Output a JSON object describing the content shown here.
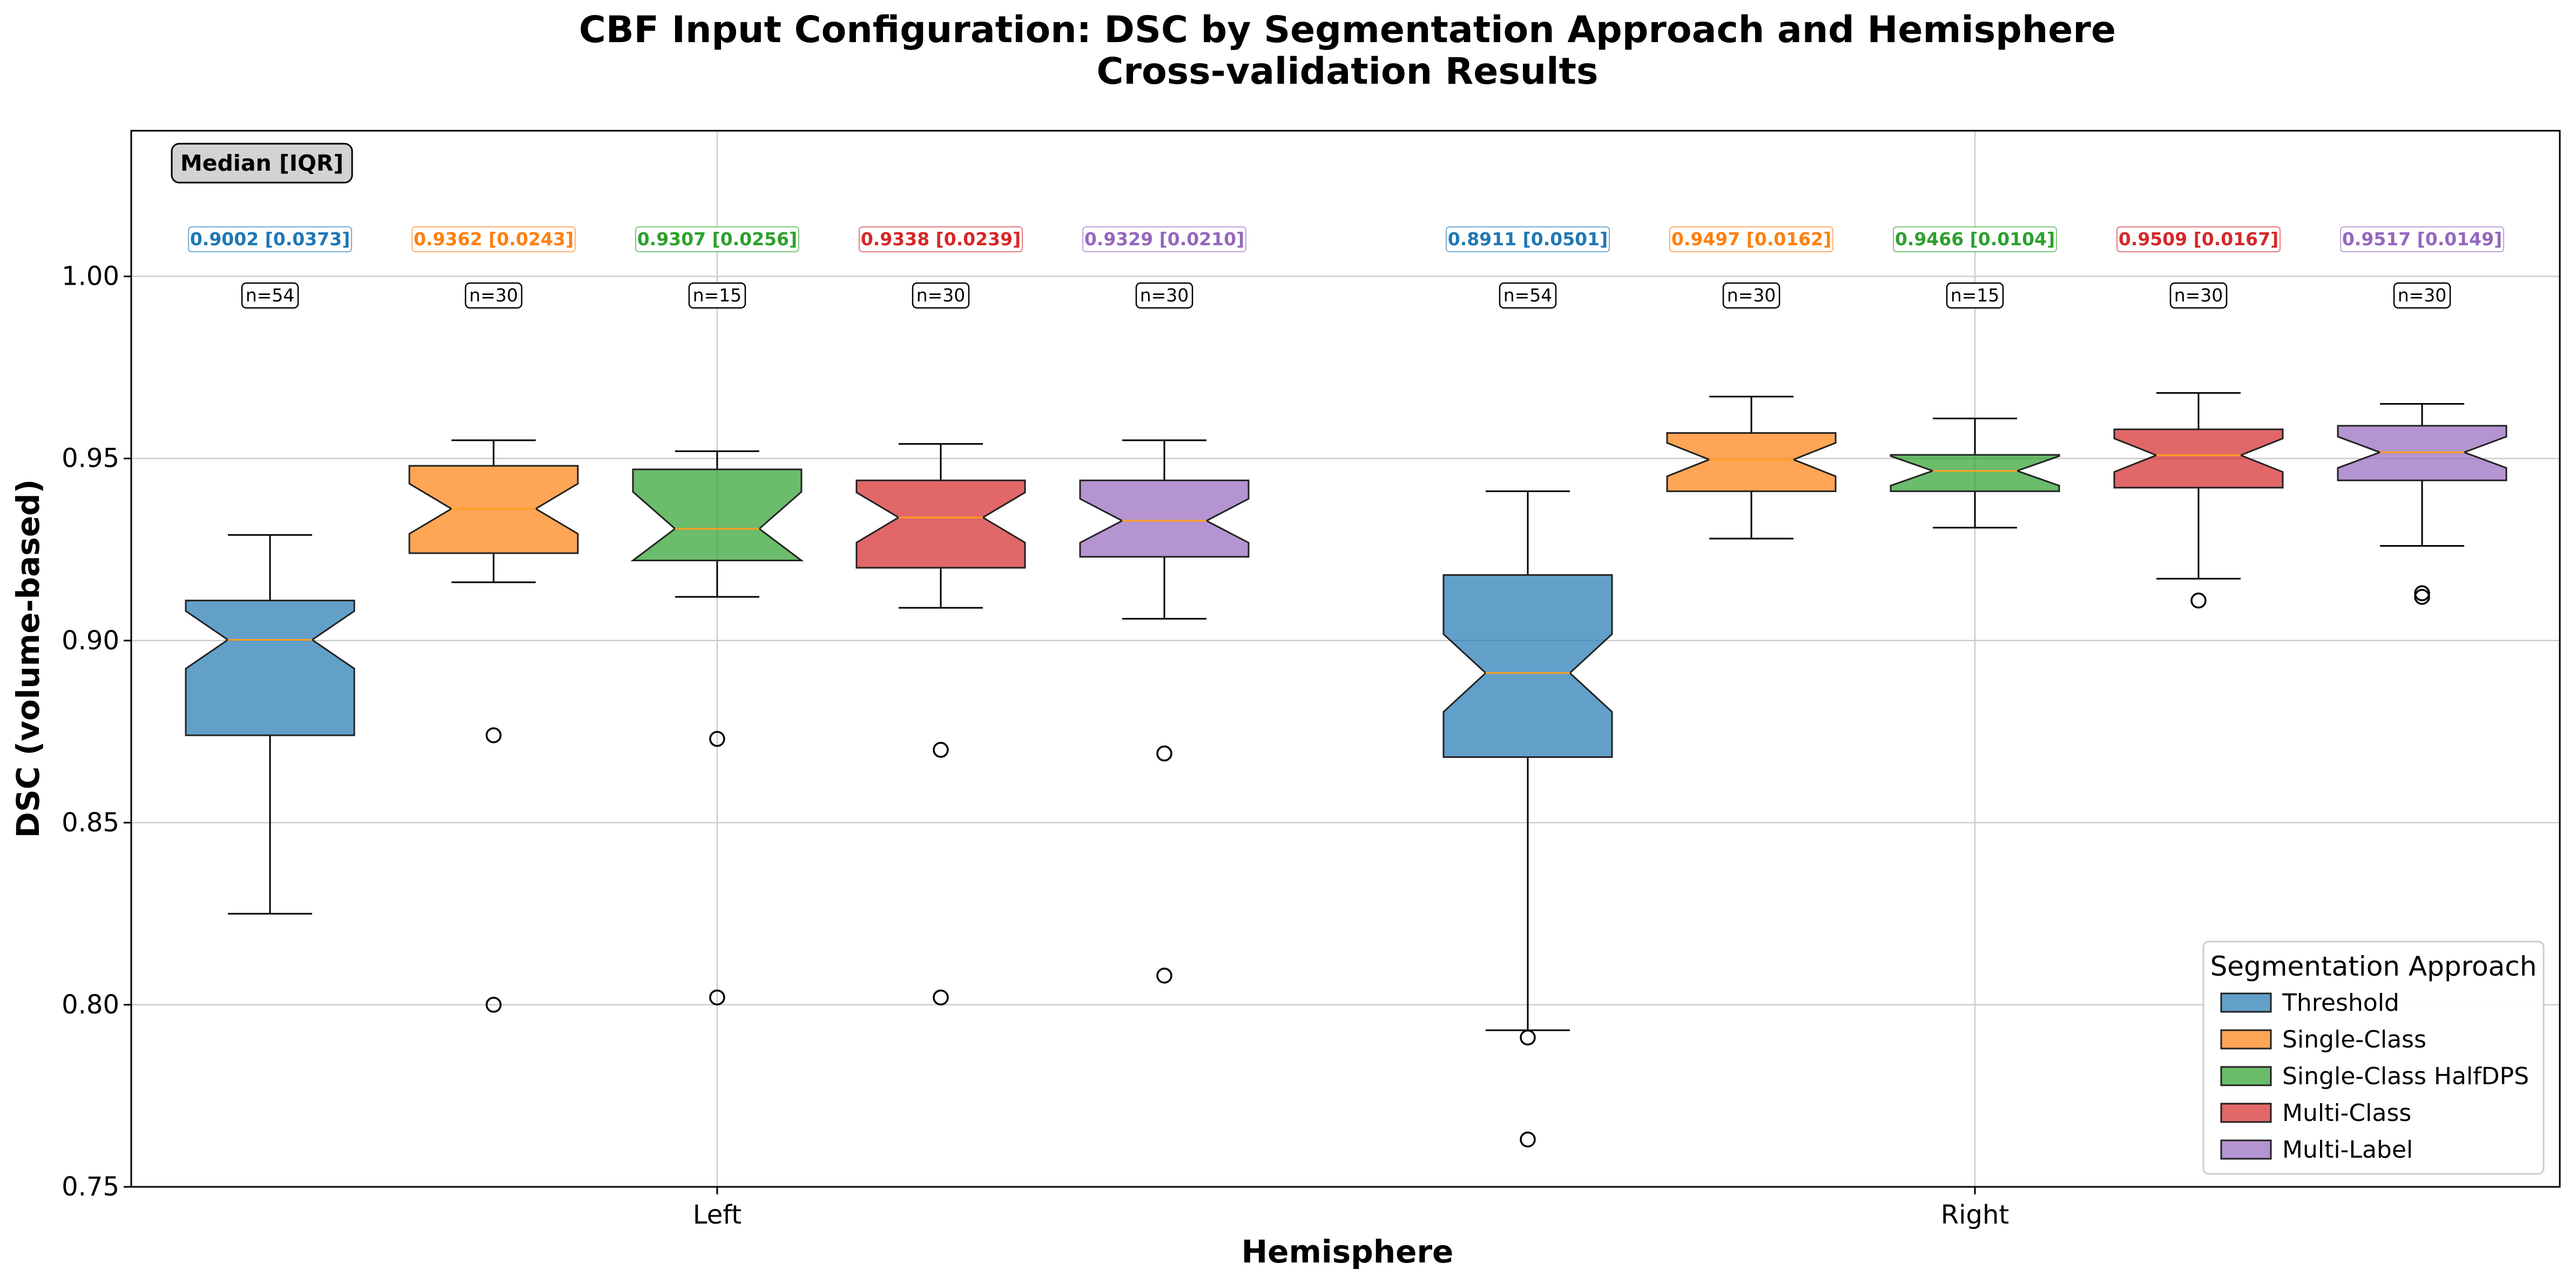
{
  "chart_data": {
    "type": "box",
    "title": "CBF Input Configuration: DSC by Segmentation Approach and Hemisphere",
    "subtitle": "Cross-validation Results",
    "xlabel": "Hemisphere",
    "ylabel": "DSC (volume-based)",
    "ylim": [
      0.75,
      1.04
    ],
    "yticks": [
      "0.75",
      "0.80",
      "0.85",
      "0.90",
      "0.95",
      "1.00"
    ],
    "grid": true,
    "categories": [
      "Left",
      "Right"
    ],
    "annotation_title": "Median [IQR]",
    "legend": {
      "title": "Segmentation Approach",
      "placement": "lower-right"
    },
    "series": [
      {
        "name": "Threshold",
        "color": "#1f77b4",
        "boxes": [
          {
            "category": "Left",
            "median": 0.9002,
            "q1": 0.874,
            "q3": 0.911,
            "whisker_low": 0.825,
            "whisker_high": 0.929,
            "outliers": [],
            "n": 54,
            "label": "0.9002 [0.0373]",
            "n_label": "n=54"
          },
          {
            "category": "Right",
            "median": 0.8911,
            "q1": 0.868,
            "q3": 0.918,
            "whisker_low": 0.793,
            "whisker_high": 0.941,
            "outliers": [
              0.791,
              0.763
            ],
            "n": 54,
            "label": "0.8911 [0.0501]",
            "n_label": "n=54"
          }
        ]
      },
      {
        "name": "Single-Class",
        "color": "#ff7f0e",
        "boxes": [
          {
            "category": "Left",
            "median": 0.9362,
            "q1": 0.924,
            "q3": 0.948,
            "whisker_low": 0.916,
            "whisker_high": 0.955,
            "outliers": [
              0.874,
              0.8
            ],
            "n": 30,
            "label": "0.9362 [0.0243]",
            "n_label": "n=30"
          },
          {
            "category": "Right",
            "median": 0.9497,
            "q1": 0.941,
            "q3": 0.957,
            "whisker_low": 0.928,
            "whisker_high": 0.967,
            "outliers": [],
            "n": 30,
            "label": "0.9497 [0.0162]",
            "n_label": "n=30"
          }
        ]
      },
      {
        "name": "Single-Class HalfDPS",
        "color": "#2ca02c",
        "boxes": [
          {
            "category": "Left",
            "median": 0.9307,
            "q1": 0.922,
            "q3": 0.947,
            "whisker_low": 0.912,
            "whisker_high": 0.952,
            "outliers": [
              0.873,
              0.802
            ],
            "n": 15,
            "label": "0.9307 [0.0256]",
            "n_label": "n=15"
          },
          {
            "category": "Right",
            "median": 0.9466,
            "q1": 0.941,
            "q3": 0.951,
            "whisker_low": 0.931,
            "whisker_high": 0.961,
            "outliers": [],
            "n": 15,
            "label": "0.9466 [0.0104]",
            "n_label": "n=15"
          }
        ]
      },
      {
        "name": "Multi-Class",
        "color": "#d62728",
        "boxes": [
          {
            "category": "Left",
            "median": 0.9338,
            "q1": 0.92,
            "q3": 0.944,
            "whisker_low": 0.909,
            "whisker_high": 0.954,
            "outliers": [
              0.87,
              0.802
            ],
            "n": 30,
            "label": "0.9338 [0.0239]",
            "n_label": "n=30"
          },
          {
            "category": "Right",
            "median": 0.9509,
            "q1": 0.942,
            "q3": 0.958,
            "whisker_low": 0.917,
            "whisker_high": 0.968,
            "outliers": [
              0.911
            ],
            "n": 30,
            "label": "0.9509 [0.0167]",
            "n_label": "n=30"
          }
        ]
      },
      {
        "name": "Multi-Label",
        "color": "#9467bd",
        "boxes": [
          {
            "category": "Left",
            "median": 0.9329,
            "q1": 0.923,
            "q3": 0.944,
            "whisker_low": 0.906,
            "whisker_high": 0.955,
            "outliers": [
              0.869,
              0.808
            ],
            "n": 30,
            "label": "0.9329 [0.0210]",
            "n_label": "n=30"
          },
          {
            "category": "Right",
            "median": 0.9517,
            "q1": 0.944,
            "q3": 0.959,
            "whisker_low": 0.926,
            "whisker_high": 0.965,
            "outliers": [
              0.913,
              0.912
            ],
            "n": 30,
            "label": "0.9517 [0.0149]",
            "n_label": "n=30"
          }
        ]
      }
    ]
  }
}
